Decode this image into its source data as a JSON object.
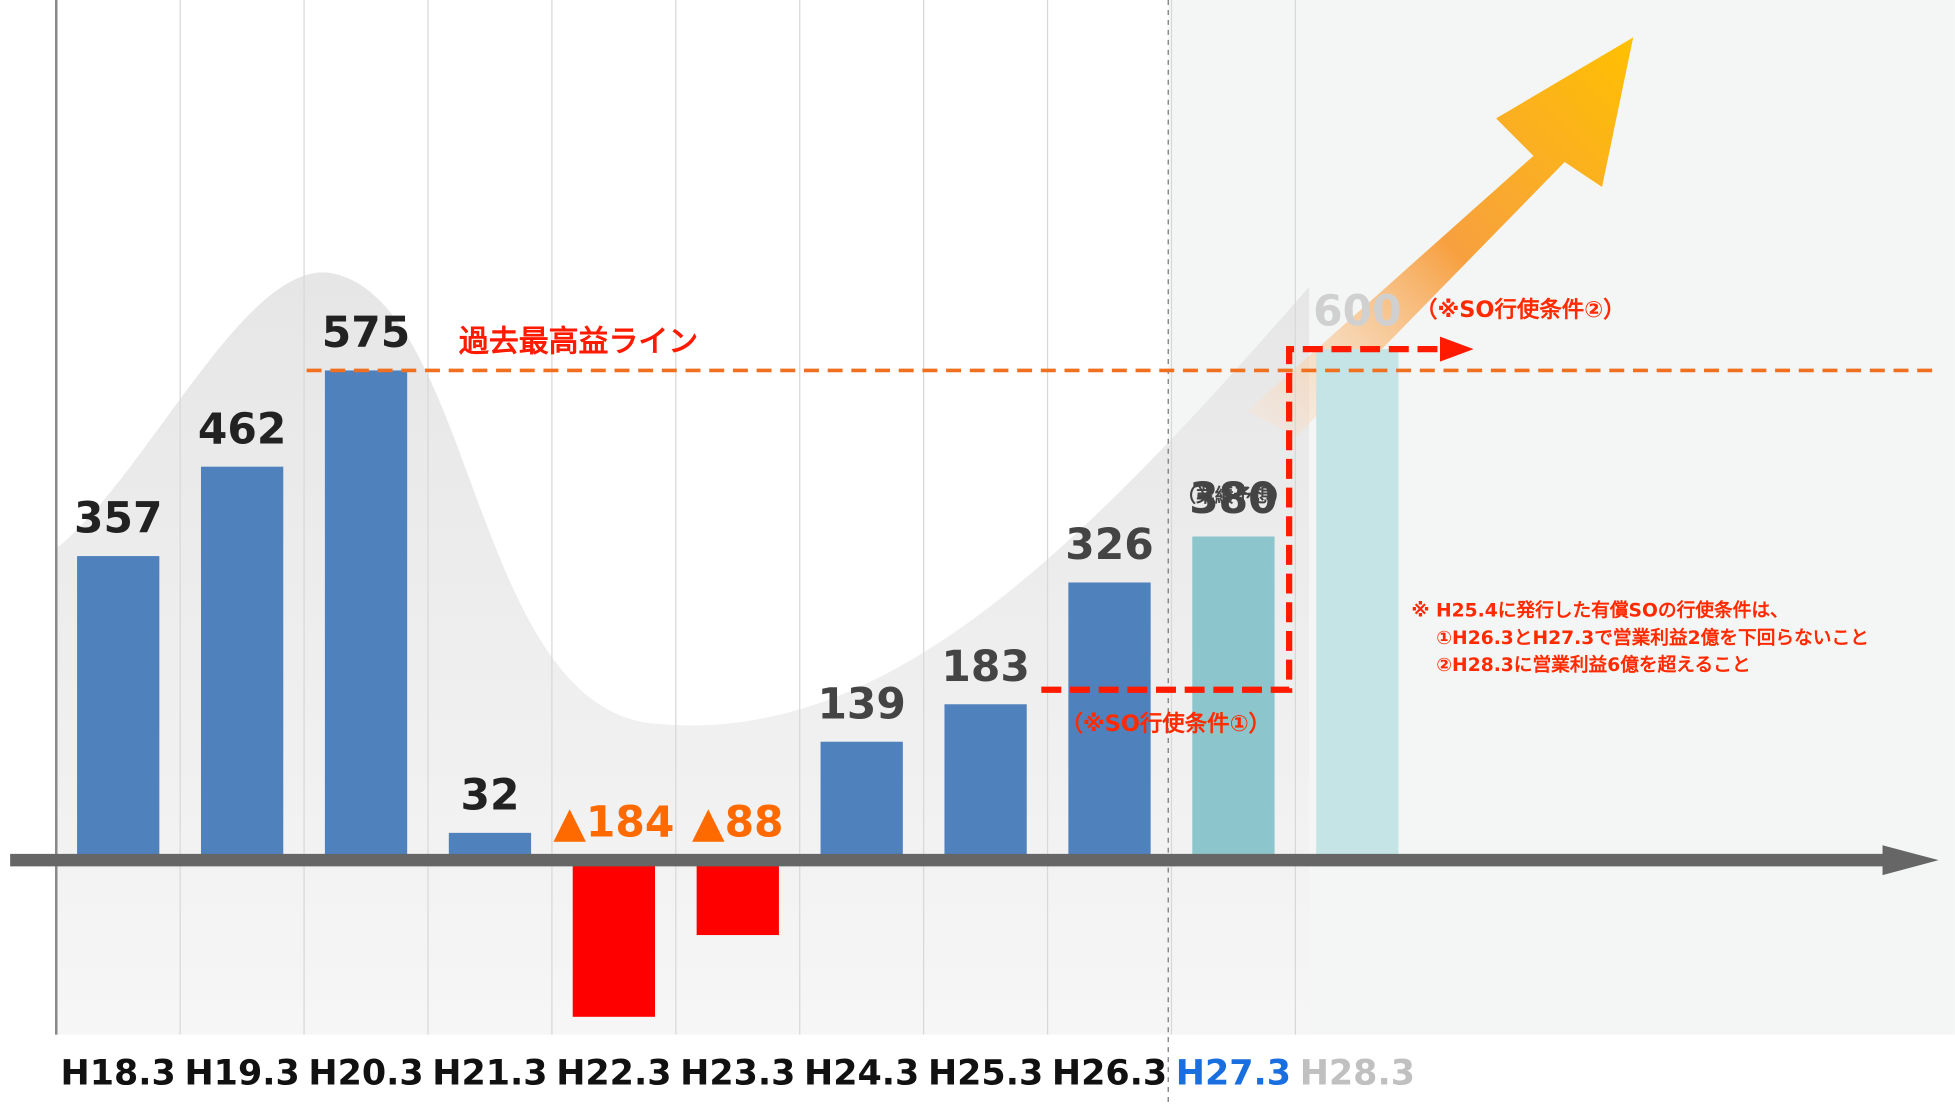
{
  "chart_data": {
    "type": "bar",
    "categories": [
      "H18.3",
      "H19.3",
      "H20.3",
      "H21.3",
      "H22.3",
      "H23.3",
      "H24.3",
      "H25.3",
      "H26.3",
      "H27.3",
      "H28.3"
    ],
    "values": [
      357,
      462,
      575,
      32,
      -184,
      -88,
      139,
      183,
      326,
      380,
      600
    ],
    "value_labels": [
      "357",
      "462",
      "575",
      "32",
      "▲184",
      "▲88",
      "139",
      "183",
      "326",
      "380",
      "600"
    ],
    "colors": [
      "#4f81bd",
      "#4f81bd",
      "#4f81bd",
      "#4f81bd",
      "#ff0000",
      "#ff0000",
      "#4f81bd",
      "#4f81bd",
      "#4f81bd",
      "#8cc6cc",
      "#c4e4e6"
    ],
    "label_colors": [
      "#222",
      "#222",
      "#222",
      "#222",
      "#ff6a00",
      "#ff6a00",
      "#444",
      "#444",
      "#444",
      "#444",
      "#d0d0d0"
    ],
    "category_colors": [
      "#111",
      "#111",
      "#111",
      "#111",
      "#111",
      "#111",
      "#111",
      "#111",
      "#111",
      "#1a6fe0",
      "#c0c0c0"
    ],
    "forecast_note": "（業績予想）",
    "ylim": [
      -205,
      1010
    ],
    "record_line": {
      "label": "過去最高益ライン",
      "value": 575,
      "color": "#f07020"
    },
    "conditions": [
      {
        "label": "（※SO行使条件①）",
        "value": 200
      },
      {
        "label": "（※SO行使条件②）",
        "value": 600
      }
    ],
    "condition_color": "#ff1a00",
    "note": [
      "※ H25.4に発行した有償SOの行使条件は、",
      "①H26.3とH27.3で営業利益2億を下回らないこと",
      "②H28.3に営業利益6億を超えること"
    ]
  }
}
